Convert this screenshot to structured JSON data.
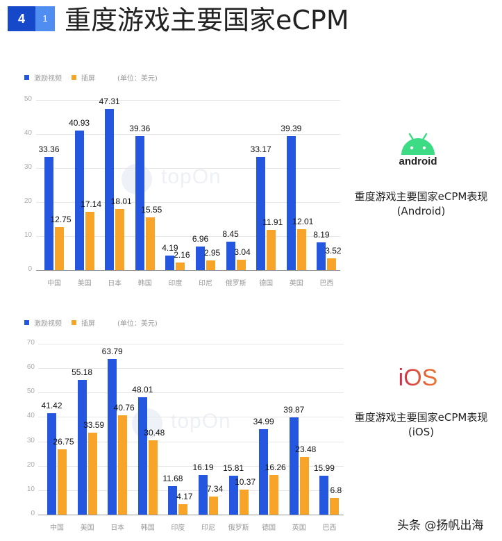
{
  "header": {
    "badge_primary": "4",
    "badge_secondary": "1",
    "title": "重度游戏主要国家eCPM"
  },
  "colors": {
    "rewarded_video": "#2456e0",
    "interstitial": "#f7a428",
    "badge_primary": "#1649c9",
    "badge_secondary": "#4f8ef0",
    "android_green": "#3ddc84"
  },
  "legend": {
    "series1": "激励视频",
    "series2": "插屏",
    "unit": "(单位：美元)"
  },
  "android_panel": {
    "logo_text": "android",
    "caption_line1": "重度游戏主要国家eCPM表现",
    "caption_line2": "(Android)"
  },
  "ios_panel": {
    "logo_text": "iOS",
    "caption_line1": "重度游戏主要国家eCPM表现",
    "caption_line2": "(iOS)"
  },
  "watermark": {
    "text": "topOn"
  },
  "footer": {
    "text": "头条 @扬帆出海"
  },
  "chart_data": [
    {
      "type": "bar",
      "title": "重度游戏主要国家eCPM表现 (Android)",
      "xlabel": "",
      "ylabel": "美元",
      "ylim": [
        0,
        50
      ],
      "yticks": [
        0,
        10,
        20,
        30,
        40,
        50
      ],
      "grid": true,
      "legend_position": "top-left",
      "categories": [
        "中国",
        "美国",
        "日本",
        "韩国",
        "印度",
        "印尼",
        "俄罗斯",
        "德国",
        "英国",
        "巴西"
      ],
      "series": [
        {
          "name": "激励视频",
          "color": "#2456e0",
          "values": [
            33.36,
            40.93,
            47.31,
            39.36,
            4.19,
            6.96,
            8.45,
            33.17,
            39.39,
            8.19
          ]
        },
        {
          "name": "插屏",
          "color": "#f7a428",
          "values": [
            12.75,
            17.14,
            18.01,
            15.55,
            2.16,
            2.95,
            3.04,
            11.91,
            12.01,
            3.52
          ]
        }
      ]
    },
    {
      "type": "bar",
      "title": "重度游戏主要国家eCPM表现 (iOS)",
      "xlabel": "",
      "ylabel": "美元",
      "ylim": [
        0,
        70
      ],
      "yticks": [
        0,
        10,
        20,
        30,
        40,
        50,
        60,
        70
      ],
      "grid": true,
      "legend_position": "top-left",
      "categories": [
        "中国",
        "美国",
        "日本",
        "韩国",
        "印度",
        "印尼",
        "俄罗斯",
        "德国",
        "英国",
        "巴西"
      ],
      "series": [
        {
          "name": "激励视频",
          "color": "#2456e0",
          "values": [
            41.42,
            55.18,
            63.79,
            48.01,
            11.68,
            16.19,
            15.81,
            34.99,
            39.87,
            15.99
          ]
        },
        {
          "name": "插屏",
          "color": "#f7a428",
          "values": [
            26.75,
            33.59,
            40.76,
            30.48,
            4.17,
            7.34,
            10.37,
            16.26,
            23.48,
            6.8
          ]
        }
      ]
    }
  ]
}
